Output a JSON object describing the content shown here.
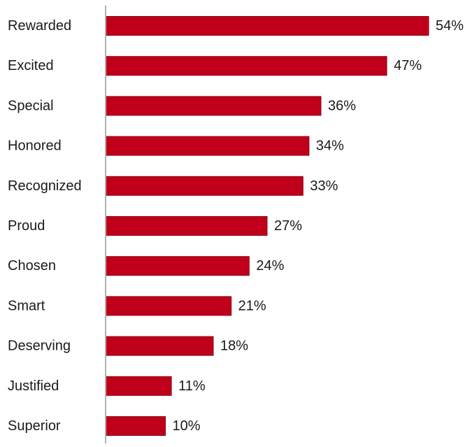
{
  "chart_data": {
    "type": "bar",
    "orientation": "horizontal",
    "categories": [
      "Rewarded",
      "Excited",
      "Special",
      "Honored",
      "Recognized",
      "Proud",
      "Chosen",
      "Smart",
      "Deserving",
      "Justified",
      "Superior"
    ],
    "values": [
      54,
      47,
      36,
      34,
      33,
      27,
      24,
      21,
      18,
      11,
      10
    ],
    "value_labels": [
      "54%",
      "47%",
      "36%",
      "34%",
      "33%",
      "27%",
      "24%",
      "21%",
      "18%",
      "11%",
      "10%"
    ],
    "unit": "%",
    "xlim": [
      0,
      54
    ],
    "bar_color": "#c0001a",
    "bar_edge_color": "#8a0012",
    "axis_color": "#b0b0b0",
    "grid": false,
    "legend": "none"
  }
}
